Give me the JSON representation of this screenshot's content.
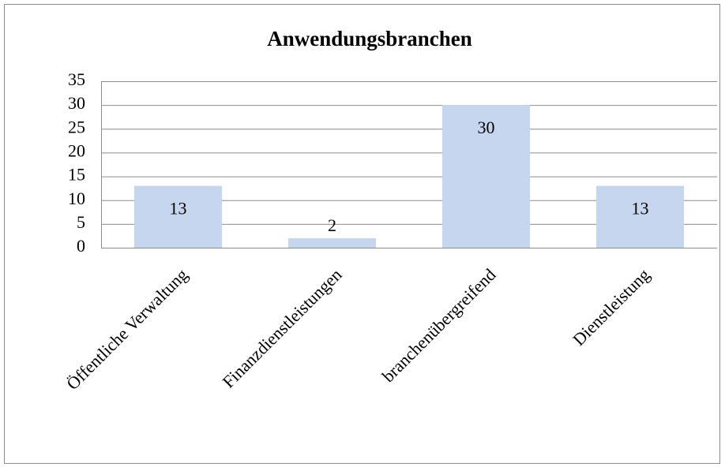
{
  "chart_data": {
    "type": "bar",
    "title": "Anwendungsbranchen",
    "categories": [
      "Öffentliche Verwaltung",
      "Finanzdienstleistungen",
      "branchenübergreifend",
      "Dienstleistung"
    ],
    "values": [
      13,
      2,
      30,
      13
    ],
    "color": "#c5d6ee",
    "ylim": [
      0,
      35
    ],
    "yticks": [
      0,
      5,
      10,
      15,
      20,
      25,
      30,
      35
    ],
    "grid": true,
    "data_labels": true
  }
}
